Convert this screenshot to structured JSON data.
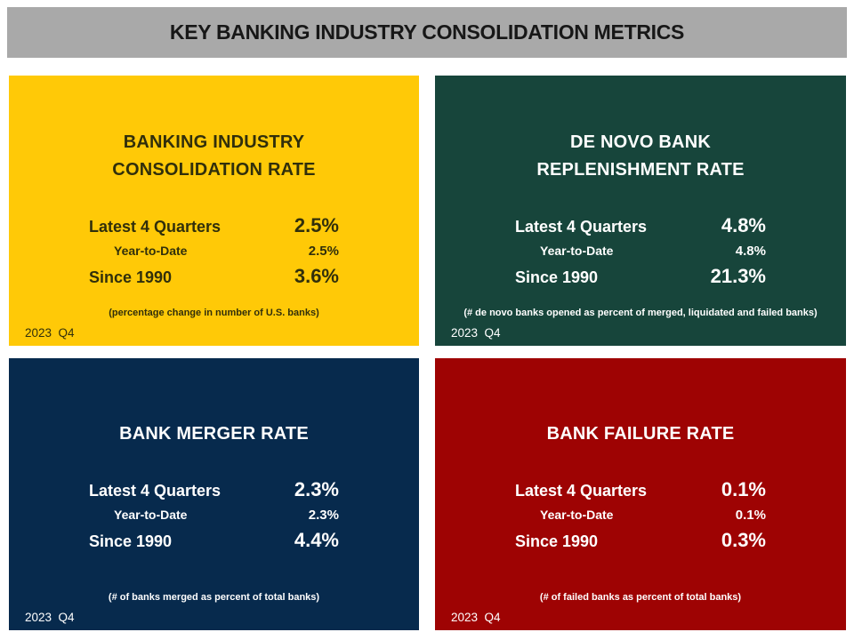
{
  "header": {
    "title": "KEY BANKING INDUSTRY CONSOLIDATION METRICS"
  },
  "colors": {
    "header_bg": "#A9A9A9",
    "header_text": "#171717",
    "panel_yellow": "#FFC907",
    "panel_green": "#17453B",
    "panel_navy": "#072A4D",
    "panel_red": "#9E0303",
    "dark_text": "#312F0B",
    "light_text": "#FFFFFF"
  },
  "panels": [
    {
      "name": "banking-industry-consolidation-rate",
      "title_line1": "BANKING INDUSTRY",
      "title_line2": "CONSOLIDATION RATE",
      "rows": [
        {
          "label": "Latest 4 Quarters",
          "value": "2.5%"
        },
        {
          "label": "Year-to-Date",
          "value": "2.5%"
        },
        {
          "label": "Since 1990",
          "value": "3.6%"
        }
      ],
      "footnote": "(percentage change in number of U.S. banks)",
      "period": "2023  Q4"
    },
    {
      "name": "de-novo-bank-replenishment-rate",
      "title_line1": "DE NOVO BANK",
      "title_line2": "REPLENISHMENT RATE",
      "rows": [
        {
          "label": "Latest 4 Quarters",
          "value": "4.8%"
        },
        {
          "label": "Year-to-Date",
          "value": "4.8%"
        },
        {
          "label": "Since 1990",
          "value": "21.3%"
        }
      ],
      "footnote": "(# de novo banks opened as percent of merged, liquidated and failed banks)",
      "period": "2023  Q4"
    },
    {
      "name": "bank-merger-rate",
      "title_line1": "BANK MERGER RATE",
      "rows": [
        {
          "label": "Latest 4 Quarters",
          "value": "2.3%"
        },
        {
          "label": "Year-to-Date",
          "value": "2.3%"
        },
        {
          "label": "Since 1990",
          "value": "4.4%"
        }
      ],
      "footnote": "(# of banks merged as percent of total banks)",
      "period": "2023  Q4"
    },
    {
      "name": "bank-failure-rate",
      "title_line1": "BANK FAILURE RATE",
      "rows": [
        {
          "label": "Latest 4 Quarters",
          "value": "0.1%"
        },
        {
          "label": "Year-to-Date",
          "value": "0.1%"
        },
        {
          "label": "Since 1990",
          "value": "0.3%"
        }
      ],
      "footnote": "(# of failed banks as percent of total banks)",
      "period": "2023  Q4"
    }
  ]
}
